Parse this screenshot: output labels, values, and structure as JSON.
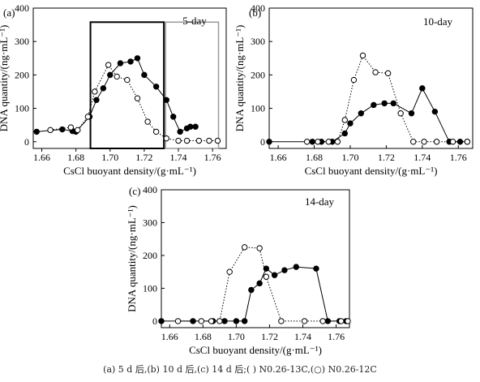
{
  "chart_data": [
    {
      "type": "line",
      "panel_label": "(a)",
      "duration_label": "5-day",
      "xlabel": "CsCl buoyant density/(g·mL⁻¹)",
      "ylabel": "DNA quantity/(ng·mL⁻¹)",
      "xlim": [
        1.655,
        1.768
      ],
      "ylim": [
        -20,
        400
      ],
      "x_ticks": [
        1.66,
        1.68,
        1.7,
        1.72,
        1.74,
        1.76
      ],
      "x_tick_labels": [
        "1.66",
        "1.68",
        "1.70",
        "1.72",
        "1.74",
        "1.76"
      ],
      "y_ticks": [
        0,
        100,
        200,
        300,
        400
      ],
      "y_tick_labels": [
        "0",
        "100",
        "200",
        "300",
        "400"
      ],
      "highlight_boxes": [
        {
          "x": [
            1.6885,
            1.7315
          ],
          "y": [
            -20,
            358
          ],
          "style": "heavy"
        },
        {
          "x": [
            1.7325,
            1.7635
          ],
          "y": [
            -20,
            358
          ],
          "style": "light"
        }
      ],
      "series": [
        {
          "marker": "filled",
          "linestyle": "solid",
          "color": "#000000",
          "x": [
            1.657,
            1.672,
            1.678,
            1.68,
            1.688,
            1.692,
            1.696,
            1.7,
            1.706,
            1.712,
            1.716,
            1.72,
            1.727,
            1.733,
            1.737,
            1.741,
            1.745,
            1.747,
            1.75
          ],
          "y": [
            30,
            37,
            32,
            30,
            75,
            125,
            160,
            200,
            235,
            240,
            250,
            200,
            165,
            125,
            75,
            30,
            40,
            45,
            45
          ]
        },
        {
          "marker": "open",
          "linestyle": "dotted",
          "color": "#000000",
          "x": [
            1.665,
            1.677,
            1.681,
            1.687,
            1.691,
            1.699,
            1.704,
            1.71,
            1.716,
            1.722,
            1.727,
            1.733,
            1.74,
            1.745,
            1.752,
            1.758,
            1.763
          ],
          "y": [
            35,
            43,
            35,
            75,
            150,
            230,
            195,
            185,
            130,
            60,
            30,
            10,
            3,
            3,
            3,
            3,
            3
          ]
        }
      ]
    },
    {
      "type": "line",
      "panel_label": "(b)",
      "duration_label": "10-day",
      "xlabel": "CsCl buoyant density/(g·mL⁻¹)",
      "ylabel": "DNA quantity/(ng·mL⁻¹)",
      "xlim": [
        1.655,
        1.768
      ],
      "ylim": [
        -20,
        400
      ],
      "x_ticks": [
        1.66,
        1.68,
        1.7,
        1.72,
        1.74,
        1.76
      ],
      "x_tick_labels": [
        "1.66",
        "1.68",
        "1.70",
        "1.72",
        "1.74",
        "1.76"
      ],
      "y_ticks": [
        0,
        100,
        200,
        300,
        400
      ],
      "y_tick_labels": [
        "0",
        "100",
        "200",
        "300",
        "400"
      ],
      "highlight_boxes": [],
      "series": [
        {
          "marker": "filled",
          "linestyle": "solid",
          "color": "#000000",
          "x": [
            1.655,
            1.679,
            1.684,
            1.69,
            1.697,
            1.7,
            1.706,
            1.713,
            1.719,
            1.724,
            1.734,
            1.74,
            1.747,
            1.755,
            1.761,
            1.765
          ],
          "y": [
            0,
            0,
            0,
            0,
            25,
            55,
            85,
            110,
            115,
            115,
            85,
            160,
            90,
            0,
            0,
            0
          ]
        },
        {
          "marker": "open",
          "linestyle": "dotted",
          "color": "#000000",
          "x": [
            1.676,
            1.682,
            1.688,
            1.693,
            1.697,
            1.702,
            1.707,
            1.714,
            1.721,
            1.728,
            1.735,
            1.741,
            1.748,
            1.757,
            1.765
          ],
          "y": [
            0,
            0,
            0,
            0,
            65,
            185,
            258,
            208,
            205,
            85,
            0,
            0,
            0,
            0,
            0
          ]
        }
      ]
    },
    {
      "type": "line",
      "panel_label": "(c)",
      "duration_label": "14-day",
      "xlabel": "CsCl buoyant density/(g·mL⁻¹)",
      "ylabel": "DNA quantity/(ng·mL⁻¹)",
      "xlim": [
        1.655,
        1.768
      ],
      "ylim": [
        -20,
        400
      ],
      "x_ticks": [
        1.66,
        1.68,
        1.7,
        1.72,
        1.74,
        1.76
      ],
      "x_tick_labels": [
        "1.66",
        "1.68",
        "1.70",
        "1.72",
        "1.74",
        "1.76"
      ],
      "y_ticks": [
        0,
        100,
        200,
        300,
        400
      ],
      "y_tick_labels": [
        "0",
        "100",
        "200",
        "300",
        "400"
      ],
      "highlight_boxes": [],
      "series": [
        {
          "marker": "filled",
          "linestyle": "solid",
          "color": "#000000",
          "x": [
            1.655,
            1.674,
            1.686,
            1.693,
            1.7,
            1.705,
            1.709,
            1.714,
            1.718,
            1.723,
            1.729,
            1.736,
            1.748,
            1.755,
            1.762,
            1.766
          ],
          "y": [
            0,
            0,
            0,
            0,
            0,
            0,
            95,
            115,
            160,
            140,
            155,
            165,
            160,
            0,
            0,
            0
          ]
        },
        {
          "marker": "open",
          "linestyle": "dotted",
          "color": "#000000",
          "x": [
            1.665,
            1.679,
            1.685,
            1.69,
            1.696,
            1.705,
            1.714,
            1.718,
            1.727,
            1.741,
            1.752,
            1.763,
            1.767
          ],
          "y": [
            0,
            0,
            0,
            0,
            150,
            225,
            222,
            135,
            0,
            0,
            0,
            0,
            0
          ]
        }
      ]
    }
  ],
  "caption": "(a) 5 d 后,(b) 10 d 后,(c) 14 d 后;( ) N0.26-13C,(○) N0.26-12C"
}
